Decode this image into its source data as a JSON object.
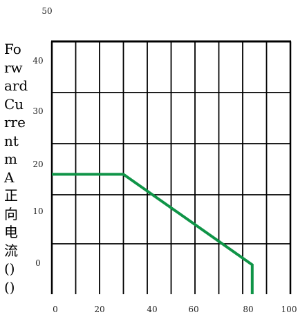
{
  "chart_data": {
    "type": "line",
    "title": "",
    "xlabel": "",
    "ylabel_lines": [
      "Fo",
      "rw",
      "ard",
      "Cu",
      "rre",
      "nt",
      "m",
      "A",
      "正",
      "向",
      "电",
      "流",
      "()",
      "()"
    ],
    "x_ticks": [
      0,
      20,
      40,
      60,
      80,
      100
    ],
    "y_ticks": [
      0,
      10,
      20,
      30,
      40,
      50
    ],
    "xlim": [
      0,
      100
    ],
    "ylim": [
      -7,
      45
    ],
    "grid": true,
    "grid_color": "#000000",
    "series": [
      {
        "color": "#0f9447",
        "points": [
          [
            0,
            19
          ],
          [
            30,
            19
          ],
          [
            84,
            0
          ],
          [
            84,
            -7
          ]
        ]
      }
    ]
  }
}
